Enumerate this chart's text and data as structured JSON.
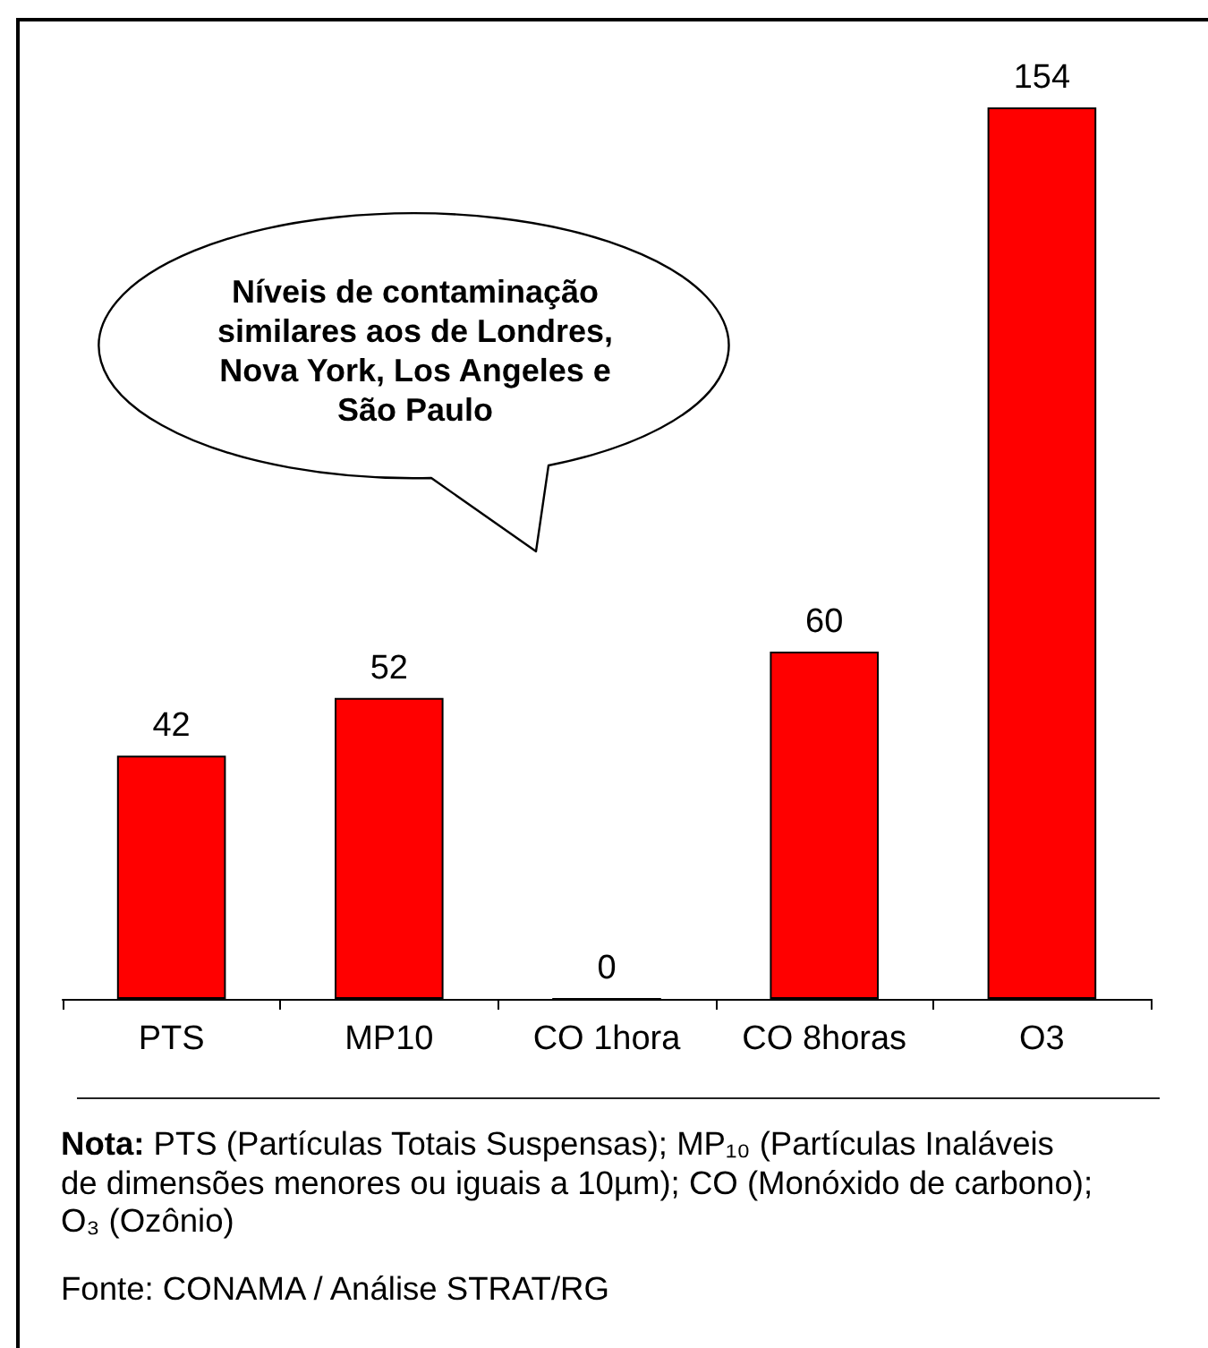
{
  "chart_data": {
    "type": "bar",
    "categories": [
      "PTS",
      "MP10",
      "CO 1hora",
      "CO 8horas",
      "O3"
    ],
    "values": [
      42,
      52,
      0,
      60,
      154
    ],
    "color": "#ff0000",
    "data_labels": true,
    "tick_labels": "x",
    "annotations": [
      "Níveis de contaminação similares aos de Londres, Nova York, Los Angeles e São Paulo",
      "Nota: PTS (Partículas Totais Suspensas); MP₁₀ (Partículas Inaláveis de dimensões menores ou iguais a 10µm); CO (Monóxido de carbono); O₃ (Ozônio)",
      "Fonte: CONAMA / Análise STRAT/RG"
    ]
  }
}
